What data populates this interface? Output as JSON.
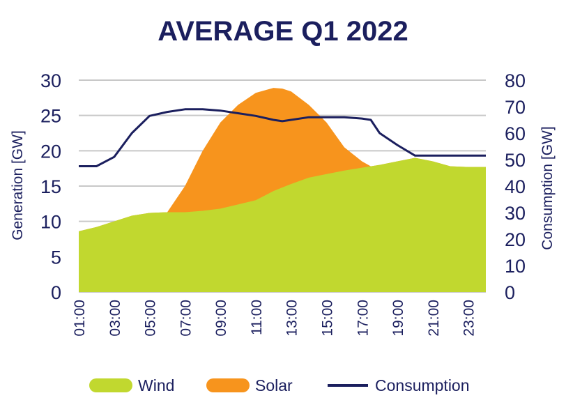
{
  "chart_data": {
    "type": "area",
    "title": "AVERAGE Q1 2022",
    "x": [
      "01:00",
      "02:00",
      "03:00",
      "04:00",
      "05:00",
      "06:00",
      "07:00",
      "08:00",
      "09:00",
      "10:00",
      "11:00",
      "12:00",
      "12:30",
      "13:00",
      "14:00",
      "15:00",
      "16:00",
      "17:00",
      "17:30",
      "18:00",
      "19:00",
      "20:00",
      "21:00",
      "22:00",
      "23:00",
      "24:00"
    ],
    "x_tick_labels": [
      "01:00",
      "03:00",
      "05:00",
      "07:00",
      "09:00",
      "11:00",
      "13:00",
      "15:00",
      "17:00",
      "19:00",
      "21:00",
      "23:00"
    ],
    "y_left": {
      "label": "Generation [GW]",
      "ylim": [
        0,
        30
      ],
      "ticks": [
        "0",
        "5",
        "10",
        "15",
        "20",
        "25",
        "30"
      ]
    },
    "y_right": {
      "label": "Consumption [GW]",
      "ylim": [
        0,
        80
      ],
      "ticks": [
        "0",
        "10",
        "20",
        "30",
        "40",
        "50",
        "60",
        "70",
        "80"
      ]
    },
    "grid": true,
    "legend_position": "bottom",
    "series": [
      {
        "name": "Wind",
        "kind": "area",
        "axis": "left",
        "color": "#c1d82f",
        "values": [
          8.6,
          9.2,
          10.0,
          10.8,
          11.2,
          11.3,
          11.3,
          11.5,
          11.8,
          12.4,
          13.0,
          14.3,
          14.8,
          15.3,
          16.2,
          16.7,
          17.2,
          17.6,
          17.8,
          18.0,
          18.5,
          19.0,
          18.5,
          17.8,
          17.7,
          17.7
        ]
      },
      {
        "name": "Solar",
        "kind": "area",
        "axis": "left",
        "color": "#f7941d",
        "values": [
          8.6,
          9.2,
          10.0,
          10.8,
          11.2,
          11.3,
          15.0,
          20.0,
          24.0,
          26.5,
          28.2,
          28.9,
          28.8,
          28.4,
          26.5,
          24.0,
          20.5,
          18.5,
          17.8,
          18.0,
          18.5,
          19.0,
          18.5,
          17.8,
          17.7,
          17.7
        ]
      },
      {
        "name": "Consumption",
        "kind": "line",
        "axis": "right",
        "color": "#1b1f5e",
        "values": [
          47.5,
          47.5,
          51.0,
          60.0,
          66.5,
          68.0,
          69.0,
          69.0,
          68.5,
          67.5,
          66.5,
          65.0,
          64.5,
          65.0,
          66.0,
          66.0,
          66.0,
          65.5,
          65.0,
          60.0,
          55.5,
          51.5,
          51.5,
          51.5,
          51.5,
          51.5
        ]
      }
    ]
  }
}
